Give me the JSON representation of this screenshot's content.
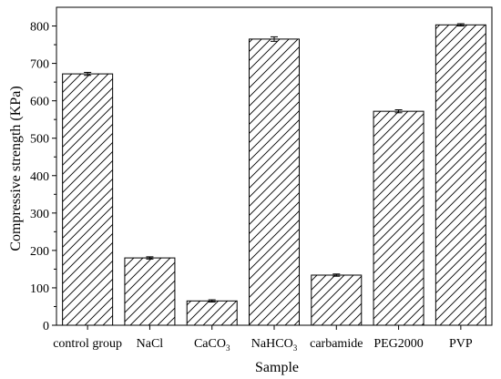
{
  "chart_data": {
    "type": "bar",
    "xlabel": "Sample",
    "ylabel": "Compressive strength (KPa)",
    "ylim": [
      0,
      850
    ],
    "yticks": [
      0,
      100,
      200,
      300,
      400,
      500,
      600,
      700,
      800
    ],
    "categories": [
      "control group",
      "NaCl",
      "CaCO3",
      "NaHCO3",
      "carbamide",
      "PEG2000",
      "PVP"
    ],
    "category_labels": [
      {
        "main": "control group",
        "sub": ""
      },
      {
        "main": "NaCl",
        "sub": ""
      },
      {
        "main": "CaCO",
        "sub": "3"
      },
      {
        "main": "NaHCO",
        "sub": "3"
      },
      {
        "main": "carbamide",
        "sub": ""
      },
      {
        "main": "PEG2000",
        "sub": ""
      },
      {
        "main": "PVP",
        "sub": ""
      }
    ],
    "values": [
      672,
      180,
      65,
      765,
      134,
      572,
      803
    ],
    "errors": [
      4,
      3,
      3,
      6,
      3,
      4,
      3
    ],
    "bar_pattern": "diagonal-hatch",
    "bar_fill": "#ffffff",
    "bar_stroke": "#000000",
    "grid": false
  }
}
